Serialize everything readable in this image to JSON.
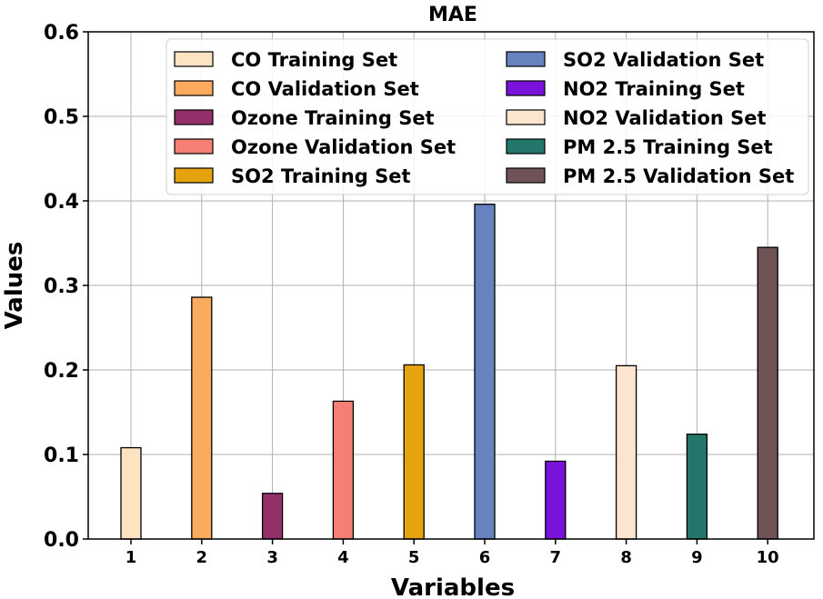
{
  "chart_data": {
    "type": "bar",
    "title": "MAE",
    "xlabel": "Variables",
    "ylabel": "Values",
    "ylim": [
      0,
      0.6
    ],
    "yticks": [
      "0.0",
      "0.1",
      "0.2",
      "0.3",
      "0.4",
      "0.5",
      "0.6"
    ],
    "categories": [
      "1",
      "2",
      "3",
      "4",
      "5",
      "6",
      "7",
      "8",
      "9",
      "10"
    ],
    "grid": true,
    "legend_position": "top-right",
    "series": [
      {
        "name": "CO Training Set",
        "value": 0.108,
        "color": "#fde3c2"
      },
      {
        "name": "CO Validation Set",
        "value": 0.286,
        "color": "#fbab5e"
      },
      {
        "name": "Ozone Training Set",
        "value": 0.054,
        "color": "#93306a"
      },
      {
        "name": "Ozone Validation Set",
        "value": 0.163,
        "color": "#f67f73"
      },
      {
        "name": "SO2 Training Set",
        "value": 0.206,
        "color": "#e5a40e"
      },
      {
        "name": "SO2 Validation Set",
        "value": 0.396,
        "color": "#6783bf"
      },
      {
        "name": "NO2 Training Set",
        "value": 0.092,
        "color": "#7a13d9"
      },
      {
        "name": "NO2 Validation Set",
        "value": 0.205,
        "color": "#fbe5ce"
      },
      {
        "name": "PM 2.5 Training Set",
        "value": 0.124,
        "color": "#22776a"
      },
      {
        "name": "PM 2.5 Validation Set",
        "value": 0.345,
        "color": "#6f5457"
      }
    ]
  }
}
